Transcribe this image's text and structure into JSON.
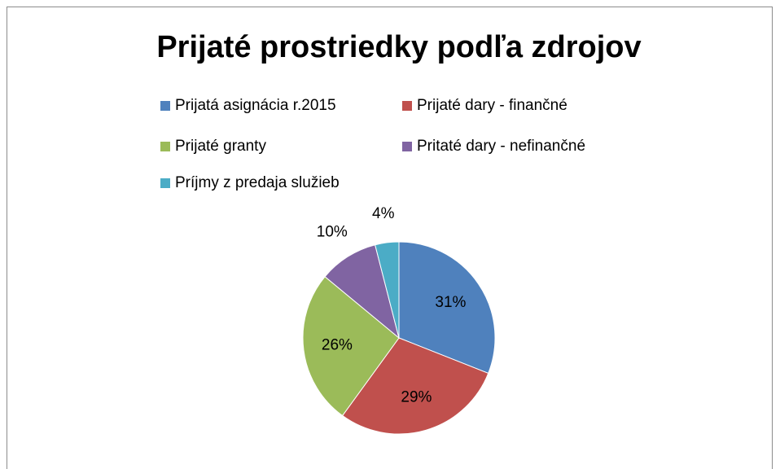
{
  "chart_data": {
    "type": "pie",
    "title": "Prijaté prostriedky podľa zdrojov",
    "categories": [
      "Prijatá asignácia r.2015",
      "Prijaté dary - finančné",
      "Prijaté granty",
      "Pritaté dary - nefinančné",
      "Príjmy z predaja služieb"
    ],
    "values": [
      31,
      29,
      26,
      10,
      4
    ],
    "value_labels": [
      "31%",
      "29%",
      "26%",
      "10%",
      "4%"
    ],
    "colors": [
      "#4f81bd",
      "#c0504d",
      "#9bbb59",
      "#8064a2",
      "#4bacc6"
    ],
    "legend": "top"
  }
}
